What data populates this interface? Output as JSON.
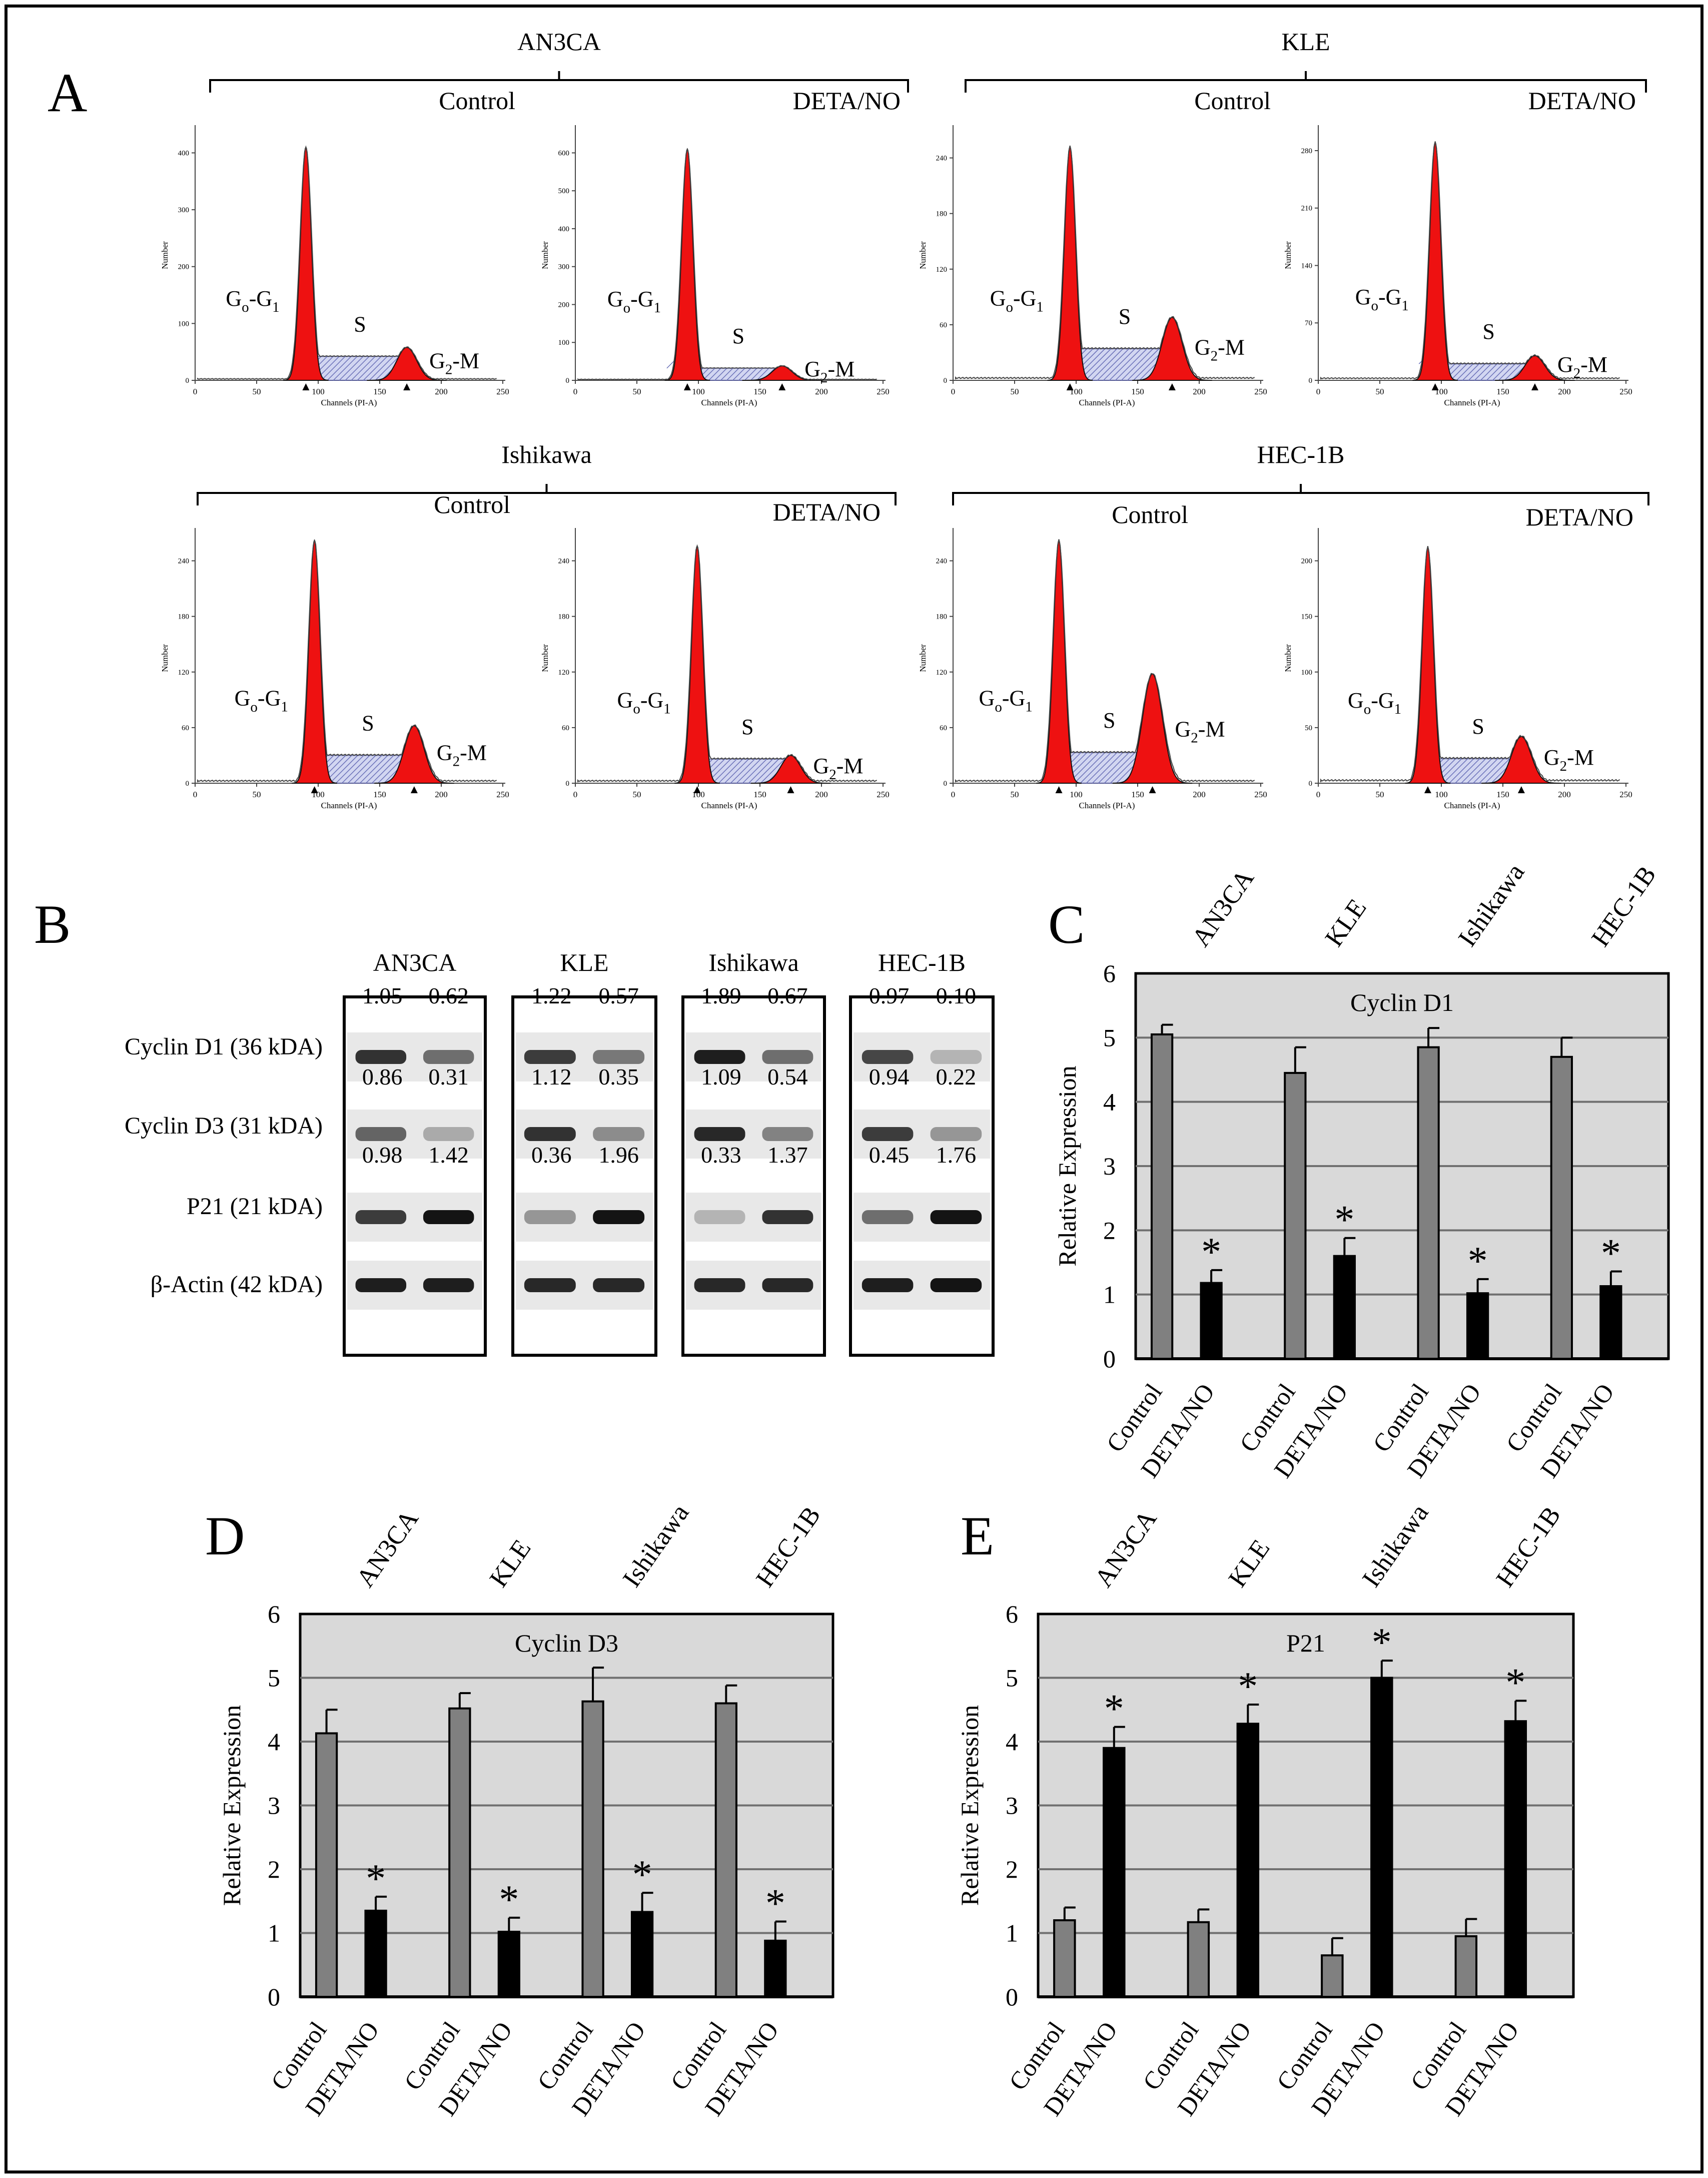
{
  "panels": {
    "A": "A",
    "B": "B",
    "C": "C",
    "D": "D",
    "E": "E"
  },
  "flow": {
    "xaxis_label": "Channels (PI-A)",
    "yaxis_label": "Number",
    "x_ticks": [
      0,
      50,
      100,
      150,
      200,
      250
    ],
    "phases": {
      "g0g1": "Go-G1",
      "s": "S",
      "g2m": "G2-M"
    },
    "conditions": [
      "Control",
      "DETA/NO"
    ],
    "cell_lines": [
      {
        "name": "AN3CA",
        "histograms": [
          {
            "condition": "Control",
            "y_ticks": [
              0,
              100,
              200,
              300,
              400
            ],
            "ymax": 440,
            "g1_pos": 90,
            "g1_height": 410,
            "s_level": 42,
            "g2_pos": 172,
            "g2_height": 58
          },
          {
            "condition": "DETA/NO",
            "y_ticks": [
              0,
              100,
              200,
              300,
              400,
              500,
              600
            ],
            "ymax": 660,
            "g1_pos": 91,
            "g1_height": 610,
            "s_level": 32,
            "g2_pos": 168,
            "g2_height": 38
          }
        ]
      },
      {
        "name": "KLE",
        "histograms": [
          {
            "condition": "Control",
            "y_ticks": [
              0,
              60,
              120,
              180,
              240
            ],
            "ymax": 270,
            "g1_pos": 95,
            "g1_height": 252,
            "s_level": 34,
            "g2_pos": 178,
            "g2_height": 68
          },
          {
            "condition": "DETA/NO",
            "y_ticks": [
              0,
              70,
              140,
              210,
              280
            ],
            "ymax": 305,
            "g1_pos": 95,
            "g1_height": 290,
            "s_level": 20,
            "g2_pos": 176,
            "g2_height": 30
          }
        ]
      },
      {
        "name": "Ishikawa",
        "histograms": [
          {
            "condition": "Control",
            "y_ticks": [
              0,
              60,
              120,
              180,
              240
            ],
            "ymax": 270,
            "g1_pos": 97,
            "g1_height": 262,
            "s_level": 30,
            "g2_pos": 178,
            "g2_height": 62
          },
          {
            "condition": "DETA/NO",
            "y_ticks": [
              0,
              60,
              120,
              180,
              240
            ],
            "ymax": 270,
            "g1_pos": 99,
            "g1_height": 256,
            "s_level": 26,
            "g2_pos": 175,
            "g2_height": 30
          }
        ]
      },
      {
        "name": "HEC-1B",
        "histograms": [
          {
            "condition": "Control",
            "y_ticks": [
              0,
              60,
              120,
              180,
              240
            ],
            "ymax": 270,
            "g1_pos": 86,
            "g1_height": 262,
            "s_level": 33,
            "g2_pos": 162,
            "g2_height": 118
          },
          {
            "condition": "DETA/NO",
            "y_ticks": [
              0,
              50,
              100,
              150,
              200
            ],
            "ymax": 225,
            "g1_pos": 89,
            "g1_height": 212,
            "s_level": 22,
            "g2_pos": 165,
            "g2_height": 42
          }
        ]
      }
    ]
  },
  "blot": {
    "cell_lines": [
      "AN3CA",
      "KLE",
      "Ishikawa",
      "HEC-1B"
    ],
    "rows": [
      {
        "label": "Cyclin  D1 (36 kDA)",
        "values": [
          [
            "1.05",
            "0.62"
          ],
          [
            "1.22",
            "0.57"
          ],
          [
            "1.89",
            "0.67"
          ],
          [
            "0.97",
            "0.10"
          ]
        ]
      },
      {
        "label": "Cyclin D3 (31 kDA)",
        "values": [
          [
            "0.86",
            "0.31"
          ],
          [
            "1.12",
            "0.35"
          ],
          [
            "1.09",
            "0.54"
          ],
          [
            "0.94",
            "0.22"
          ]
        ]
      },
      {
        "label": "P21 (21 kDA)",
        "values": [
          [
            "0.98",
            "1.42"
          ],
          [
            "0.36",
            "1.96"
          ],
          [
            "0.33",
            "1.37"
          ],
          [
            "0.45",
            "1.76"
          ]
        ]
      },
      {
        "label": "β-Actin (42 kDA)",
        "values": null
      }
    ]
  },
  "chart_data": [
    {
      "panel": "C",
      "type": "bar",
      "title": "Cyclin  D1",
      "ylabel": "Relative Expression",
      "ylim": [
        0,
        6
      ],
      "categories": [
        "AN3CA",
        "KLE",
        "Ishikawa",
        "HEC-1B"
      ],
      "xlabels": [
        "Control",
        "DETA/NO"
      ],
      "series": [
        {
          "name": "Control",
          "color": "#808080",
          "values": [
            5.05,
            4.45,
            4.85,
            4.7
          ],
          "errors": [
            0.15,
            0.4,
            0.3,
            0.3
          ]
        },
        {
          "name": "DETA/NO",
          "color": "#000000",
          "values": [
            1.18,
            1.6,
            1.02,
            1.13
          ],
          "errors": [
            0.2,
            0.28,
            0.22,
            0.23
          ]
        }
      ],
      "significance": [
        false,
        true,
        false,
        true,
        false,
        true,
        false,
        true
      ],
      "sig_mark": "*"
    },
    {
      "panel": "D",
      "type": "bar",
      "title": "Cyclin  D3",
      "ylabel": "Relative Expression",
      "ylim": [
        0,
        6
      ],
      "categories": [
        "AN3CA",
        "KLE",
        "Ishikawa",
        "HEC-1B"
      ],
      "xlabels": [
        "Control",
        "DETA/NO"
      ],
      "series": [
        {
          "name": "Control",
          "color": "#808080",
          "values": [
            4.13,
            4.52,
            4.63,
            4.6
          ],
          "errors": [
            0.37,
            0.24,
            0.53,
            0.28
          ]
        },
        {
          "name": "DETA/NO",
          "color": "#000000",
          "values": [
            1.35,
            1.02,
            1.33,
            0.88
          ],
          "errors": [
            0.22,
            0.22,
            0.3,
            0.3
          ]
        }
      ],
      "significance": [
        false,
        true,
        false,
        true,
        false,
        true,
        false,
        true
      ],
      "sig_mark": "*"
    },
    {
      "panel": "E",
      "type": "bar",
      "title": "P21",
      "ylabel": "Relative Expression",
      "ylim": [
        0,
        6
      ],
      "categories": [
        "AN3CA",
        "KLE",
        "Ishikawa",
        "HEC-1B"
      ],
      "xlabels": [
        "Control",
        "DETA/NO"
      ],
      "series": [
        {
          "name": "Control",
          "color": "#808080",
          "values": [
            1.2,
            1.17,
            0.65,
            0.95
          ],
          "errors": [
            0.2,
            0.2,
            0.27,
            0.27
          ]
        },
        {
          "name": "DETA/NO",
          "color": "#000000",
          "values": [
            3.9,
            4.28,
            5.0,
            4.32
          ],
          "errors": [
            0.33,
            0.3,
            0.27,
            0.32
          ]
        }
      ],
      "significance": [
        false,
        true,
        false,
        true,
        false,
        true,
        false,
        true
      ],
      "sig_mark": "*"
    }
  ]
}
